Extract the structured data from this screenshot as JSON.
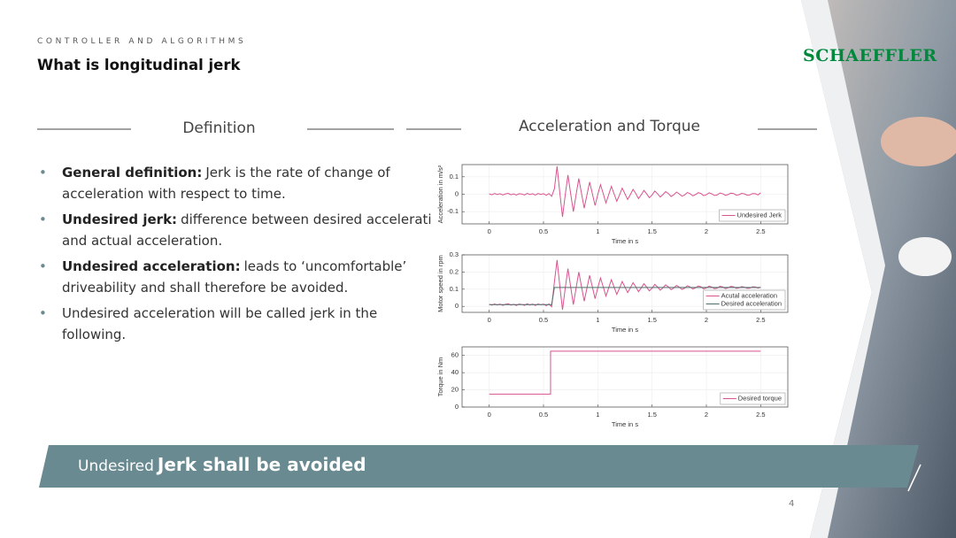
{
  "header": {
    "section": "CONTROLLER AND ALGORITHMS",
    "title": "What is longitudinal jerk",
    "logo": "SCHAEFFLER"
  },
  "definition": {
    "heading": "Definition",
    "bullets": [
      {
        "label": "General definition:",
        "text": "Jerk is the rate of change of acceleration with respect to time."
      },
      {
        "label": "Undesired jerk:",
        "text": "difference between desired acceleration and actual acceleration."
      },
      {
        "label": "Undesired acceleration:",
        "text": "leads to ‘uncomfortable’ driveability and shall therefore be avoided."
      },
      {
        "text": "Undesired acceleration will be called jerk in the following."
      }
    ]
  },
  "figure_heading": "Acceleration and Torque",
  "chart_data": [
    {
      "type": "line",
      "xlabel": "Time in s",
      "ylabel": "Acceleration in m/s²",
      "grid": true,
      "legend": "lower right",
      "xlim": [
        -0.25,
        2.75
      ],
      "xticks": [
        0,
        0.5,
        1,
        1.5,
        2,
        2.5
      ],
      "ylim": [
        -0.17,
        0.17
      ],
      "yticks": [
        -0.1,
        0,
        0.1
      ],
      "x": [
        0,
        0.025,
        0.05,
        0.075,
        0.1,
        0.125,
        0.15,
        0.175,
        0.2,
        0.225,
        0.25,
        0.275,
        0.3,
        0.325,
        0.35,
        0.375,
        0.4,
        0.425,
        0.45,
        0.475,
        0.5,
        0.525,
        0.55,
        0.575,
        0.6,
        0.625,
        0.65,
        0.675,
        0.7,
        0.725,
        0.75,
        0.775,
        0.8,
        0.825,
        0.85,
        0.875,
        0.9,
        0.925,
        0.95,
        0.975,
        1,
        1.025,
        1.05,
        1.075,
        1.1,
        1.125,
        1.15,
        1.175,
        1.2,
        1.225,
        1.25,
        1.275,
        1.3,
        1.325,
        1.35,
        1.375,
        1.4,
        1.425,
        1.45,
        1.475,
        1.5,
        1.525,
        1.55,
        1.575,
        1.6,
        1.625,
        1.65,
        1.675,
        1.7,
        1.725,
        1.75,
        1.775,
        1.8,
        1.825,
        1.85,
        1.875,
        1.9,
        1.925,
        1.95,
        1.975,
        2,
        2.025,
        2.05,
        2.075,
        2.1,
        2.125,
        2.15,
        2.175,
        2.2,
        2.225,
        2.25,
        2.275,
        2.3,
        2.325,
        2.35,
        2.375,
        2.4,
        2.425,
        2.45,
        2.475,
        2.5
      ],
      "series": [
        {
          "name": "Undesired Jerk",
          "color": "#d9538e",
          "values": [
            0.002,
            -0.003,
            0.004,
            -0.002,
            0.003,
            -0.004,
            0.002,
            0.005,
            -0.003,
            0.002,
            -0.005,
            0.003,
            0.001,
            -0.004,
            0.005,
            -0.002,
            0.003,
            -0.005,
            0.004,
            -0.001,
            0.003,
            -0.006,
            0.004,
            -0.012,
            0.03,
            0.16,
            0.01,
            -0.13,
            -0.005,
            0.11,
            0.004,
            -0.1,
            -0.003,
            0.09,
            0.005,
            -0.08,
            -0.004,
            0.07,
            0.003,
            -0.065,
            -0.002,
            0.055,
            0.004,
            -0.05,
            -0.003,
            0.045,
            0.002,
            -0.04,
            -0.004,
            0.035,
            0.003,
            -0.03,
            -0.002,
            0.028,
            0.004,
            -0.025,
            -0.003,
            0.022,
            0.002,
            -0.02,
            -0.004,
            0.018,
            0.003,
            -0.016,
            -0.002,
            0.015,
            0.004,
            -0.013,
            -0.003,
            0.012,
            0.002,
            -0.011,
            -0.004,
            0.01,
            0.003,
            -0.009,
            -0.002,
            0.009,
            0.004,
            -0.008,
            -0.003,
            0.008,
            0.002,
            -0.007,
            -0.004,
            0.007,
            0.003,
            -0.006,
            -0.002,
            0.006,
            0.004,
            -0.005,
            -0.003,
            0.005,
            0.002,
            -0.005,
            -0.004,
            0.004,
            0.003,
            -0.004,
            0.008
          ]
        }
      ]
    },
    {
      "type": "line",
      "xlabel": "Time in s",
      "ylabel": "Motor speed in rpm",
      "grid": true,
      "legend": "lower right",
      "xlim": [
        -0.25,
        2.75
      ],
      "xticks": [
        0,
        0.5,
        1,
        1.5,
        2,
        2.5
      ],
      "ylim": [
        -0.035,
        0.3
      ],
      "yticks": [
        0,
        0.1,
        0.2,
        0.3
      ],
      "x": [
        0,
        0.025,
        0.05,
        0.075,
        0.1,
        0.125,
        0.15,
        0.175,
        0.2,
        0.225,
        0.25,
        0.275,
        0.3,
        0.325,
        0.35,
        0.375,
        0.4,
        0.425,
        0.45,
        0.475,
        0.5,
        0.525,
        0.55,
        0.575,
        0.6,
        0.625,
        0.65,
        0.675,
        0.7,
        0.725,
        0.75,
        0.775,
        0.8,
        0.825,
        0.85,
        0.875,
        0.9,
        0.925,
        0.95,
        0.975,
        1,
        1.025,
        1.05,
        1.075,
        1.1,
        1.125,
        1.15,
        1.175,
        1.2,
        1.225,
        1.25,
        1.275,
        1.3,
        1.325,
        1.35,
        1.375,
        1.4,
        1.425,
        1.45,
        1.475,
        1.5,
        1.525,
        1.55,
        1.575,
        1.6,
        1.625,
        1.65,
        1.675,
        1.7,
        1.725,
        1.75,
        1.775,
        1.8,
        1.825,
        1.85,
        1.875,
        1.9,
        1.925,
        1.95,
        1.975,
        2,
        2.025,
        2.05,
        2.075,
        2.1,
        2.125,
        2.15,
        2.175,
        2.2,
        2.225,
        2.25,
        2.275,
        2.3,
        2.325,
        2.35,
        2.375,
        2.4,
        2.425,
        2.45,
        2.475,
        2.5
      ],
      "series": [
        {
          "name": "Acutal acceleration",
          "color": "#d9538e",
          "values": [
            0.012,
            0.007,
            0.014,
            0.008,
            0.013,
            0.006,
            0.012,
            0.015,
            0.007,
            0.012,
            0.005,
            0.013,
            0.011,
            0.006,
            0.015,
            0.008,
            0.013,
            0.005,
            0.014,
            0.009,
            0.013,
            0.004,
            0.014,
            -0.002,
            0.14,
            0.27,
            0.12,
            -0.02,
            0.105,
            0.22,
            0.114,
            0.01,
            0.107,
            0.2,
            0.115,
            0.03,
            0.106,
            0.18,
            0.113,
            0.045,
            0.108,
            0.165,
            0.114,
            0.06,
            0.107,
            0.155,
            0.112,
            0.07,
            0.106,
            0.145,
            0.113,
            0.08,
            0.108,
            0.138,
            0.114,
            0.085,
            0.107,
            0.132,
            0.112,
            0.09,
            0.106,
            0.128,
            0.113,
            0.094,
            0.108,
            0.125,
            0.114,
            0.097,
            0.107,
            0.122,
            0.112,
            0.099,
            0.106,
            0.12,
            0.113,
            0.101,
            0.108,
            0.119,
            0.114,
            0.102,
            0.107,
            0.118,
            0.112,
            0.103,
            0.106,
            0.117,
            0.113,
            0.104,
            0.108,
            0.116,
            0.114,
            0.105,
            0.107,
            0.115,
            0.112,
            0.105,
            0.106,
            0.114,
            0.113,
            0.106,
            0.112
          ]
        },
        {
          "name": "Desired acceleration",
          "color": "#4d6e6a",
          "values": [
            0.01,
            0.01,
            0.01,
            0.01,
            0.01,
            0.01,
            0.01,
            0.01,
            0.01,
            0.01,
            0.01,
            0.01,
            0.01,
            0.01,
            0.01,
            0.01,
            0.01,
            0.01,
            0.01,
            0.01,
            0.01,
            0.01,
            0.01,
            0.01,
            0.11,
            0.11,
            0.11,
            0.11,
            0.11,
            0.11,
            0.11,
            0.11,
            0.11,
            0.11,
            0.11,
            0.11,
            0.11,
            0.11,
            0.11,
            0.11,
            0.11,
            0.11,
            0.11,
            0.11,
            0.11,
            0.11,
            0.11,
            0.11,
            0.11,
            0.11,
            0.11,
            0.11,
            0.11,
            0.11,
            0.11,
            0.11,
            0.11,
            0.11,
            0.11,
            0.11,
            0.11,
            0.11,
            0.11,
            0.11,
            0.11,
            0.11,
            0.11,
            0.11,
            0.11,
            0.11,
            0.11,
            0.11,
            0.11,
            0.11,
            0.11,
            0.11,
            0.11,
            0.11,
            0.11,
            0.11,
            0.11,
            0.11,
            0.11,
            0.11,
            0.11,
            0.11,
            0.11,
            0.11,
            0.11,
            0.11,
            0.11,
            0.11,
            0.11,
            0.11,
            0.11,
            0.11,
            0.11,
            0.11,
            0.11,
            0.11,
            0.11
          ]
        }
      ]
    },
    {
      "type": "line",
      "xlabel": "Time in s",
      "ylabel": "Torque in Nm",
      "grid": true,
      "legend": "lower right",
      "xlim": [
        -0.25,
        2.75
      ],
      "xticks": [
        0,
        0.5,
        1,
        1.5,
        2,
        2.5
      ],
      "ylim": [
        0,
        70
      ],
      "yticks": [
        0,
        20,
        40,
        60
      ],
      "x": [
        0,
        0.565,
        0.565,
        2.5
      ],
      "series": [
        {
          "name": "Desired torque",
          "color": "#d9538e",
          "values": [
            15,
            15,
            65,
            65
          ]
        }
      ]
    }
  ],
  "banner": {
    "small": "Undesired",
    "big": "Jerk shall be avoided"
  },
  "page_number": "4"
}
